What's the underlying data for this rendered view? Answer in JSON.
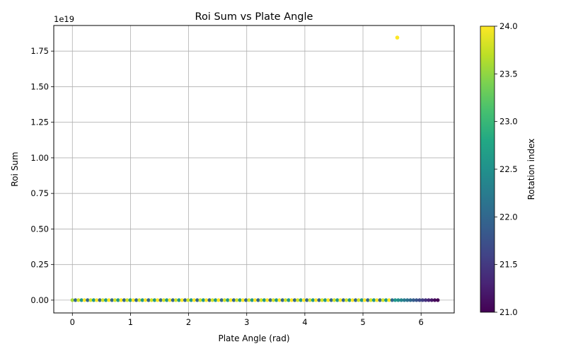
{
  "chart_data": {
    "type": "scatter",
    "title": "Roi Sum vs Plate Angle",
    "xlabel": "Plate Angle (rad)",
    "ylabel": "Roi Sum",
    "xlim": [
      -0.32,
      6.57
    ],
    "ylim": [
      -0.09,
      1.93
    ],
    "y_scale_multiplier_label": "1e19",
    "x_ticks": [
      0,
      1,
      2,
      3,
      4,
      5,
      6
    ],
    "x_tick_labels": [
      "0",
      "1",
      "2",
      "3",
      "4",
      "5",
      "6"
    ],
    "y_ticks": [
      0,
      0.25,
      0.5,
      0.75,
      1.0,
      1.25,
      1.5,
      1.75
    ],
    "y_tick_labels": [
      "0.00",
      "0.25",
      "0.50",
      "0.75",
      "1.00",
      "1.25",
      "1.50",
      "1.75"
    ],
    "grid": true,
    "colormap": "viridis",
    "colorbar": {
      "label": "Rotation index",
      "range": [
        21.0,
        24.0
      ],
      "ticks": [
        21.0,
        21.5,
        22.0,
        22.5,
        23.0,
        23.5,
        24.0
      ],
      "tick_labels": [
        "21.0",
        "21.5",
        "22.0",
        "22.5",
        "23.0",
        "23.5",
        "24.0"
      ]
    },
    "outlier": {
      "x": 5.59,
      "y": 1.845,
      "color_value": 24.0
    },
    "baseline": {
      "y": 0,
      "x_start": 0.0,
      "x_end": 6.27,
      "x_step": 0.0524
    }
  }
}
